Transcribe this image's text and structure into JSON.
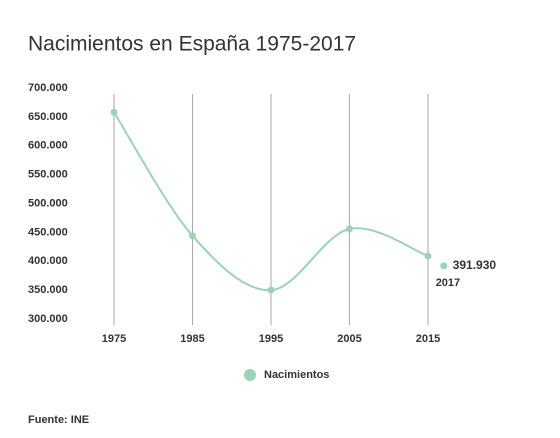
{
  "chart_data": {
    "type": "line",
    "title": "Nacimientos en España 1975-2017",
    "x": [
      1975,
      1985,
      1995,
      2005,
      2015
    ],
    "series": [
      {
        "name": "Nacimientos",
        "color": "#9dd3b5",
        "values": [
          658000,
          444000,
          350000,
          456000,
          409000
        ]
      }
    ],
    "highlight": {
      "x": 2017,
      "value": 391930,
      "value_label": "391.930"
    },
    "xlim": [
      1972,
      2020
    ],
    "xticks": [
      1975,
      1985,
      1995,
      2005,
      2015
    ],
    "ylim": [
      300000,
      700000
    ],
    "yticks": [
      {
        "value": 300000,
        "label": "300.000"
      },
      {
        "value": 350000,
        "label": "350.000"
      },
      {
        "value": 400000,
        "label": "400.000"
      },
      {
        "value": 450000,
        "label": "450.000"
      },
      {
        "value": 500000,
        "label": "500.000"
      },
      {
        "value": 550000,
        "label": "550.000"
      },
      {
        "value": 600000,
        "label": "600.000"
      },
      {
        "value": 650000,
        "label": "650.000"
      },
      {
        "value": 700000,
        "label": "700.000"
      }
    ],
    "grid": "x",
    "legend": "bottom",
    "source": "Fuente: INE"
  }
}
